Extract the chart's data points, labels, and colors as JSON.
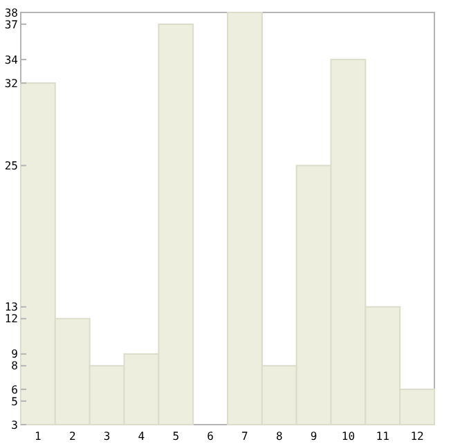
{
  "chart_data": {
    "type": "bar",
    "categories": [
      "1",
      "2",
      "3",
      "4",
      "5",
      "6",
      "7",
      "8",
      "9",
      "10",
      "11",
      "12"
    ],
    "values": [
      32,
      12,
      8,
      9,
      37,
      3,
      38,
      8,
      25,
      34,
      13,
      6
    ],
    "color": "#eeeedf",
    "ylim": [
      3,
      38
    ],
    "yticks": [
      3,
      5,
      6,
      8,
      9,
      12,
      13,
      25,
      32,
      34,
      37,
      38
    ]
  }
}
